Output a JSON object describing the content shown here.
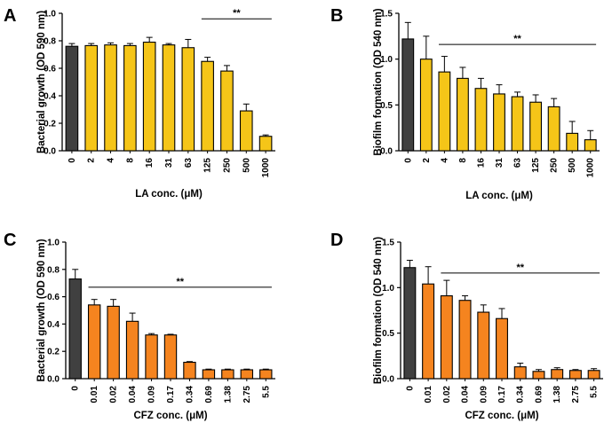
{
  "chart_data": [
    {
      "type": "bar",
      "panel": "A",
      "categories": [
        "0",
        "2",
        "4",
        "8",
        "16",
        "31",
        "63",
        "125",
        "250",
        "500",
        "1000"
      ],
      "values": [
        0.76,
        0.765,
        0.77,
        0.765,
        0.79,
        0.77,
        0.75,
        0.65,
        0.58,
        0.29,
        0.105
      ],
      "errors": [
        0.02,
        0.015,
        0.015,
        0.015,
        0.035,
        0.01,
        0.06,
        0.03,
        0.04,
        0.05,
        0.01
      ],
      "colors": [
        "#404040",
        "#F5C518",
        "#F5C518",
        "#F5C518",
        "#F5C518",
        "#F5C518",
        "#F5C518",
        "#F5C518",
        "#F5C518",
        "#F5C518",
        "#F5C518"
      ],
      "ylabel": "Bacterial growth (OD 590 nm)",
      "xlabel": "LA conc. (μM)",
      "ylim": [
        0,
        1.0
      ],
      "yticks": [
        "0.0",
        "0.2",
        "0.4",
        "0.6",
        "0.8",
        "1.0"
      ],
      "significance": {
        "label": "**",
        "from": "125",
        "to": "1000",
        "y": 0.96
      }
    },
    {
      "type": "bar",
      "panel": "B",
      "categories": [
        "0",
        "2",
        "4",
        "8",
        "16",
        "31",
        "63",
        "125",
        "250",
        "500",
        "1000"
      ],
      "values": [
        1.22,
        1.0,
        0.86,
        0.79,
        0.68,
        0.62,
        0.59,
        0.53,
        0.48,
        0.19,
        0.12
      ],
      "errors": [
        0.18,
        0.25,
        0.17,
        0.12,
        0.11,
        0.1,
        0.05,
        0.08,
        0.09,
        0.13,
        0.1
      ],
      "colors": [
        "#404040",
        "#F5C518",
        "#F5C518",
        "#F5C518",
        "#F5C518",
        "#F5C518",
        "#F5C518",
        "#F5C518",
        "#F5C518",
        "#F5C518",
        "#F5C518"
      ],
      "ylabel": "Biofilm formation (OD 540 nm)",
      "xlabel": "LA conc. (μM)",
      "ylim": [
        0,
        1.5
      ],
      "yticks": [
        "0.0",
        "0.5",
        "1.0",
        "1.5"
      ],
      "significance": {
        "label": "**",
        "from": "4",
        "to": "1000",
        "y": 1.16
      }
    },
    {
      "type": "bar",
      "panel": "C",
      "categories": [
        "0",
        "0.01",
        "0.02",
        "0.04",
        "0.09",
        "0.17",
        "0.34",
        "0.69",
        "1.38",
        "2.75",
        "5.5"
      ],
      "values": [
        0.73,
        0.54,
        0.53,
        0.42,
        0.32,
        0.32,
        0.12,
        0.065,
        0.065,
        0.065,
        0.065
      ],
      "errors": [
        0.07,
        0.04,
        0.05,
        0.06,
        0.01,
        0.005,
        0.005,
        0.005,
        0.005,
        0.005,
        0.005
      ],
      "colors": [
        "#404040",
        "#F5841F",
        "#F5841F",
        "#F5841F",
        "#F5841F",
        "#F5841F",
        "#F5841F",
        "#F5841F",
        "#F5841F",
        "#F5841F",
        "#F5841F"
      ],
      "ylabel": "Bacterial growth (OD 590 nm)",
      "xlabel": "CFZ conc. (μM)",
      "ylim": [
        0,
        1.0
      ],
      "yticks": [
        "0.0",
        "0.2",
        "0.4",
        "0.6",
        "0.8",
        "1.0"
      ],
      "significance": {
        "label": "**",
        "from": "0.01",
        "to": "5.5",
        "y": 0.67
      }
    },
    {
      "type": "bar",
      "panel": "D",
      "categories": [
        "0",
        "0.01",
        "0.02",
        "0.04",
        "0.09",
        "0.17",
        "0.34",
        "0.69",
        "1.38",
        "2.75",
        "5.5"
      ],
      "values": [
        1.22,
        1.04,
        0.91,
        0.86,
        0.73,
        0.66,
        0.13,
        0.08,
        0.1,
        0.09,
        0.09
      ],
      "errors": [
        0.08,
        0.19,
        0.17,
        0.05,
        0.08,
        0.11,
        0.04,
        0.02,
        0.02,
        0.01,
        0.02
      ],
      "colors": [
        "#404040",
        "#F5841F",
        "#F5841F",
        "#F5841F",
        "#F5841F",
        "#F5841F",
        "#F5841F",
        "#F5841F",
        "#F5841F",
        "#F5841F",
        "#F5841F"
      ],
      "ylabel": "Biofilm formation (OD 540 nm)",
      "xlabel": "CFZ conc. (μM)",
      "ylim": [
        0,
        1.5
      ],
      "yticks": [
        "0.0",
        "0.5",
        "1.0",
        "1.5"
      ],
      "significance": {
        "label": "**",
        "from": "0.02",
        "to": "5.5",
        "y": 1.16
      }
    }
  ]
}
